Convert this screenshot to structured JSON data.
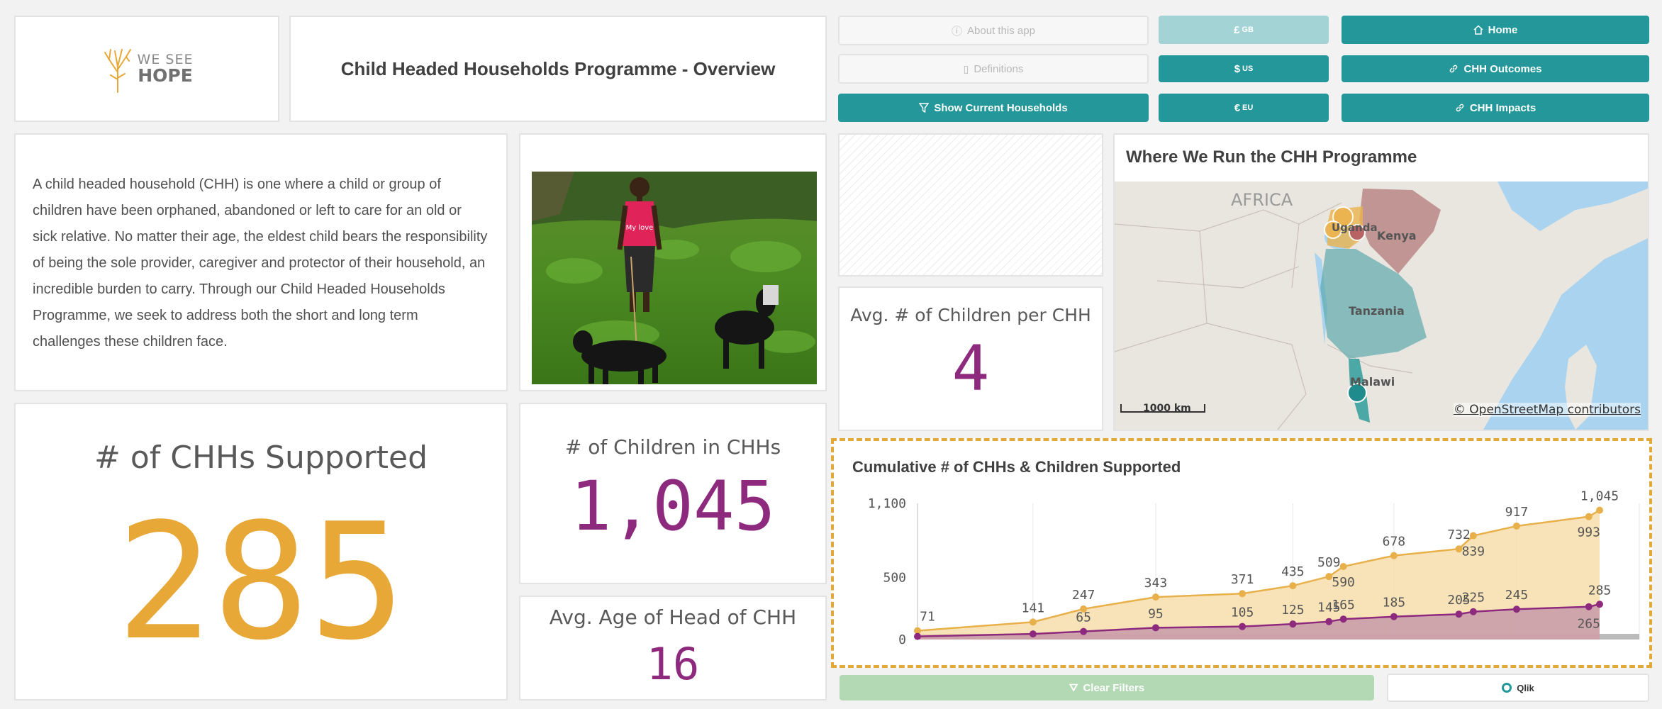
{
  "header": {
    "logo_text_top": "WE SEE",
    "logo_text_bottom": "HOPE",
    "title": "Child Headed Households Programme - Overview"
  },
  "buttons": {
    "about": "About this app",
    "definitions": "Definitions",
    "show_current": "Show Current Households",
    "gbp_symbol": "£",
    "gbp_code": "GB",
    "usd_symbol": "$",
    "usd_code": "US",
    "eur_symbol": "€",
    "eur_code": "EU",
    "home": "Home",
    "outcomes": "CHH Outcomes",
    "impacts": "CHH Impacts",
    "clear_filters": "Clear Filters",
    "qlik": "Qlik"
  },
  "intro_text": "A child headed household (CHH) is one where a child or group of children have been orphaned, abandoned or left to care for an old or sick relative. No matter their age, the eldest child bears the responsibility of being the sole provider, caregiver and protector of their household, an incredible burden to carry. Through our Child Headed Households Programme, we seek to address both the short and long term challenges these children face.",
  "photo": {
    "shirt_text": "My love"
  },
  "kpis": {
    "chh_supported_label": "# of CHHs Supported",
    "chh_supported_value": "285",
    "children_label": "# of Children in CHHs",
    "children_value": "1,045",
    "avg_age_label": "Avg. Age of Head of CHH",
    "avg_age_value": "16",
    "avg_children_label": "Avg. # of Children per CHH",
    "avg_children_value": "4"
  },
  "map": {
    "title": "Where We Run the CHH Programme",
    "region_label": "AFRICA",
    "countries": [
      "Uganda",
      "Kenya",
      "Tanzania",
      "Malawi"
    ],
    "scale": "1000 km",
    "attribution": "© OpenStreetMap contributors"
  },
  "colors": {
    "accent_teal": "#23979a",
    "kpi_orange": "#e8a838",
    "kpi_purple": "#8e2a7e",
    "children_line": "#e8b04a",
    "chh_line": "#8e2a7e",
    "highlight_border": "#e0a93a"
  },
  "chart_data": {
    "type": "area",
    "title": "Cumulative # of CHHs & Children Supported",
    "yticks": [
      0,
      500,
      1100
    ],
    "ytick_labels": [
      "0",
      "500",
      "1,100"
    ],
    "ylim": [
      0,
      1100
    ],
    "xlim": [
      0,
      100
    ],
    "grid": true,
    "series": [
      {
        "color": "#e8b04a",
        "x": [
          0,
          16,
          23,
          33,
          45,
          52,
          57,
          59,
          66,
          75,
          77,
          83,
          93,
          94.5
        ],
        "values": [
          71,
          141,
          247,
          343,
          371,
          435,
          509,
          590,
          678,
          732,
          839,
          917,
          993,
          1045
        ],
        "labels": [
          "71",
          "141",
          "247",
          "343",
          "371",
          "435",
          "509",
          "590",
          "678",
          "732",
          "839",
          "917",
          "993",
          "1,045"
        ]
      },
      {
        "color": "#8e2a7e",
        "x": [
          0,
          16,
          23,
          33,
          45,
          52,
          57,
          59,
          66,
          75,
          77,
          83,
          93,
          94.5
        ],
        "values": [
          25,
          45,
          65,
          95,
          105,
          125,
          145,
          165,
          185,
          205,
          225,
          245,
          265,
          285
        ],
        "labels": [
          "",
          "",
          "65",
          "95",
          "105",
          "125",
          "145",
          "165",
          "185",
          "205",
          "225",
          "245",
          "265",
          "285"
        ]
      }
    ]
  }
}
